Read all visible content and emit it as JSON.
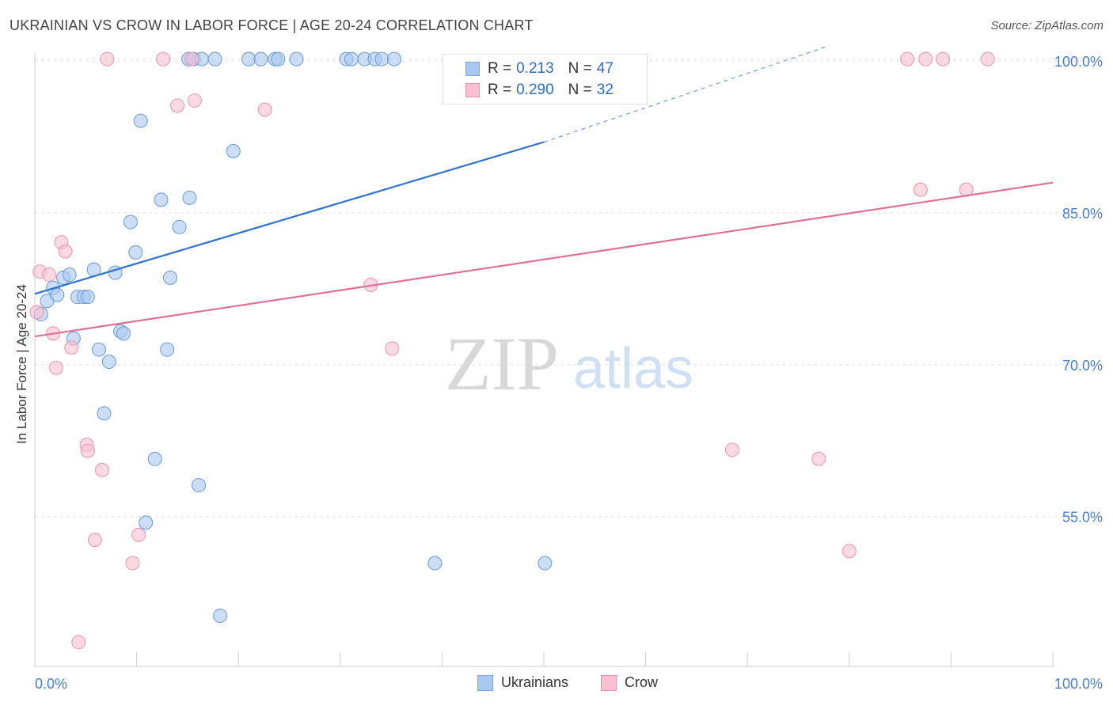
{
  "title": "UKRAINIAN VS CROW IN LABOR FORCE | AGE 20-24 CORRELATION CHART",
  "source": "Source: ZipAtlas.com",
  "watermark": {
    "zip": "ZIP",
    "atlas": "atlas"
  },
  "legend": {
    "r_label": "R =",
    "n_label": "N =",
    "rows": [
      {
        "r": "0.213",
        "n": "47",
        "color": "#a8c8f0",
        "border": "#7aa8e0"
      },
      {
        "r": "0.290",
        "n": "32",
        "color": "#f8c0d0",
        "border": "#f090b0"
      }
    ]
  },
  "bottom_legend": [
    {
      "label": "Ukrainians",
      "color": "#a8c8f0",
      "border": "#7aa8e0"
    },
    {
      "label": "Crow",
      "color": "#f8c0d0",
      "border": "#f090b0"
    }
  ],
  "chart_data": {
    "type": "scatter",
    "title": "UKRAINIAN VS CROW IN LABOR FORCE | AGE 20-24 CORRELATION CHART",
    "xlabel": "",
    "ylabel": "In Labor Force | Age 20-24",
    "xlim": [
      0,
      100
    ],
    "ylim": [
      40.2,
      101.5
    ],
    "x_tick_labels": [
      "0.0%",
      "100.0%"
    ],
    "y_ticks": [
      55,
      70,
      85,
      100
    ],
    "y_tick_labels": [
      "55.0%",
      "70.0%",
      "85.0%",
      "100.0%"
    ],
    "grid": true,
    "series": [
      {
        "name": "Ukrainians",
        "color": "#a8c8f0",
        "stroke": "#6a9ad8",
        "line_color": "#2f72d0",
        "trend": {
          "x0": 0,
          "y0": 77.0,
          "x1": 50,
          "y1": 92.0,
          "dash_x1": 78,
          "dash_y1": 101.5
        },
        "points": [
          [
            0.6,
            75.0
          ],
          [
            1.2,
            76.3
          ],
          [
            1.8,
            77.6
          ],
          [
            2.2,
            76.9
          ],
          [
            2.8,
            78.6
          ],
          [
            3.4,
            78.9
          ],
          [
            3.8,
            72.6
          ],
          [
            4.2,
            76.7
          ],
          [
            4.8,
            76.7
          ],
          [
            5.2,
            76.7
          ],
          [
            5.8,
            79.4
          ],
          [
            6.3,
            71.5
          ],
          [
            6.8,
            65.2
          ],
          [
            7.3,
            70.3
          ],
          [
            7.9,
            79.1
          ],
          [
            8.4,
            73.3
          ],
          [
            8.7,
            73.1
          ],
          [
            9.4,
            84.1
          ],
          [
            9.9,
            81.1
          ],
          [
            10.4,
            94.1
          ],
          [
            10.9,
            54.4
          ],
          [
            11.8,
            60.7
          ],
          [
            12.4,
            86.3
          ],
          [
            13.0,
            71.5
          ],
          [
            13.3,
            78.6
          ],
          [
            14.2,
            83.6
          ],
          [
            15.2,
            86.5
          ],
          [
            16.1,
            58.1
          ],
          [
            18.2,
            45.2
          ],
          [
            19.5,
            91.1
          ],
          [
            15.1,
            100.2
          ],
          [
            15.6,
            100.2
          ],
          [
            16.4,
            100.2
          ],
          [
            17.7,
            100.2
          ],
          [
            21.0,
            100.2
          ],
          [
            22.2,
            100.2
          ],
          [
            23.6,
            100.2
          ],
          [
            23.9,
            100.2
          ],
          [
            25.7,
            100.2
          ],
          [
            30.6,
            100.2
          ],
          [
            31.1,
            100.2
          ],
          [
            32.4,
            100.2
          ],
          [
            33.4,
            100.2
          ],
          [
            34.1,
            100.2
          ],
          [
            35.3,
            100.2
          ],
          [
            39.3,
            50.4
          ],
          [
            50.1,
            50.4
          ]
        ]
      },
      {
        "name": "Crow",
        "color": "#f8c0d0",
        "stroke": "#ec94b0",
        "line_color": "#e0709a",
        "trend": {
          "x0": 0,
          "y0": 72.8,
          "x1": 100,
          "y1": 88.0
        },
        "points": [
          [
            0.2,
            75.2
          ],
          [
            0.5,
            79.2
          ],
          [
            1.4,
            78.9
          ],
          [
            1.8,
            73.1
          ],
          [
            2.1,
            69.7
          ],
          [
            2.6,
            82.1
          ],
          [
            3.0,
            81.2
          ],
          [
            3.6,
            71.7
          ],
          [
            4.3,
            42.6
          ],
          [
            5.1,
            62.1
          ],
          [
            5.2,
            61.5
          ],
          [
            5.9,
            52.7
          ],
          [
            6.6,
            59.6
          ],
          [
            7.1,
            100.2
          ],
          [
            9.6,
            50.4
          ],
          [
            10.2,
            53.2
          ],
          [
            12.6,
            100.2
          ],
          [
            14.0,
            95.6
          ],
          [
            15.4,
            100.2
          ],
          [
            15.7,
            96.1
          ],
          [
            22.6,
            95.2
          ],
          [
            33.0,
            77.9
          ],
          [
            35.1,
            71.6
          ],
          [
            68.5,
            61.6
          ],
          [
            77.0,
            60.7
          ],
          [
            80.0,
            51.6
          ],
          [
            85.7,
            100.2
          ],
          [
            87.0,
            87.3
          ],
          [
            87.5,
            100.2
          ],
          [
            89.2,
            100.2
          ],
          [
            91.5,
            87.3
          ],
          [
            93.6,
            100.2
          ]
        ]
      }
    ]
  }
}
